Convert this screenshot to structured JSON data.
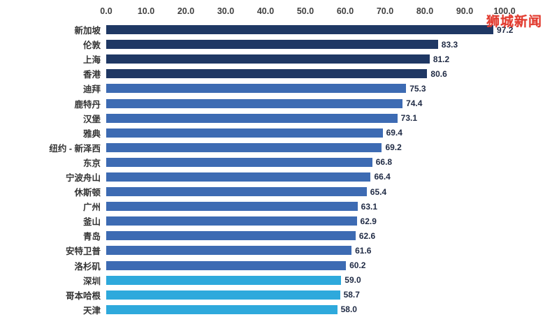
{
  "watermark": {
    "text": "狮城新闻",
    "color": "#e23a2e"
  },
  "chart_data": {
    "type": "bar",
    "orientation": "horizontal",
    "title": "",
    "xlabel": "",
    "ylabel": "",
    "xlim": [
      0,
      100
    ],
    "x_ticks": [
      "0.0",
      "10.0",
      "20.0",
      "30.0",
      "40.0",
      "50.0",
      "60.0",
      "70.0",
      "80.0",
      "90.0",
      "100.0"
    ],
    "grid": false,
    "legend": "none",
    "categories": [
      "新加坡",
      "伦敦",
      "上海",
      "香港",
      "迪拜",
      "鹿特丹",
      "汉堡",
      "雅典",
      "纽约 - 新泽西",
      "东京",
      "宁波舟山",
      "休斯顿",
      "广州",
      "釜山",
      "青岛",
      "安特卫普",
      "洛杉矶",
      "深圳",
      "哥本哈根",
      "天津"
    ],
    "values": [
      97.2,
      83.3,
      81.2,
      80.6,
      75.3,
      74.4,
      73.1,
      69.4,
      69.2,
      66.8,
      66.4,
      65.4,
      63.1,
      62.9,
      62.6,
      61.6,
      60.2,
      59.0,
      58.7,
      58.0
    ],
    "value_labels": [
      "97.2",
      "83.3",
      "81.2",
      "80.6",
      "75.3",
      "74.4",
      "73.1",
      "69.4",
      "69.2",
      "66.8",
      "66.4",
      "65.4",
      "63.1",
      "62.9",
      "62.6",
      "61.6",
      "60.2",
      "59.0",
      "58.7",
      "58.0"
    ],
    "bar_colors": [
      "#1f3864",
      "#1f3864",
      "#1f3864",
      "#1f3864",
      "#3d6bb3",
      "#3d6bb3",
      "#3d6bb3",
      "#3d6bb3",
      "#3d6bb3",
      "#3d6bb3",
      "#3d6bb3",
      "#3d6bb3",
      "#3d6bb3",
      "#3d6bb3",
      "#3d6bb3",
      "#3d6bb3",
      "#3d6bb3",
      "#2ea9dc",
      "#2ea9dc",
      "#2ea9dc"
    ],
    "palette": {
      "dark_navy": "#1f3864",
      "medium_blue": "#3d6bb3",
      "light_blue": "#2ea9dc"
    }
  }
}
